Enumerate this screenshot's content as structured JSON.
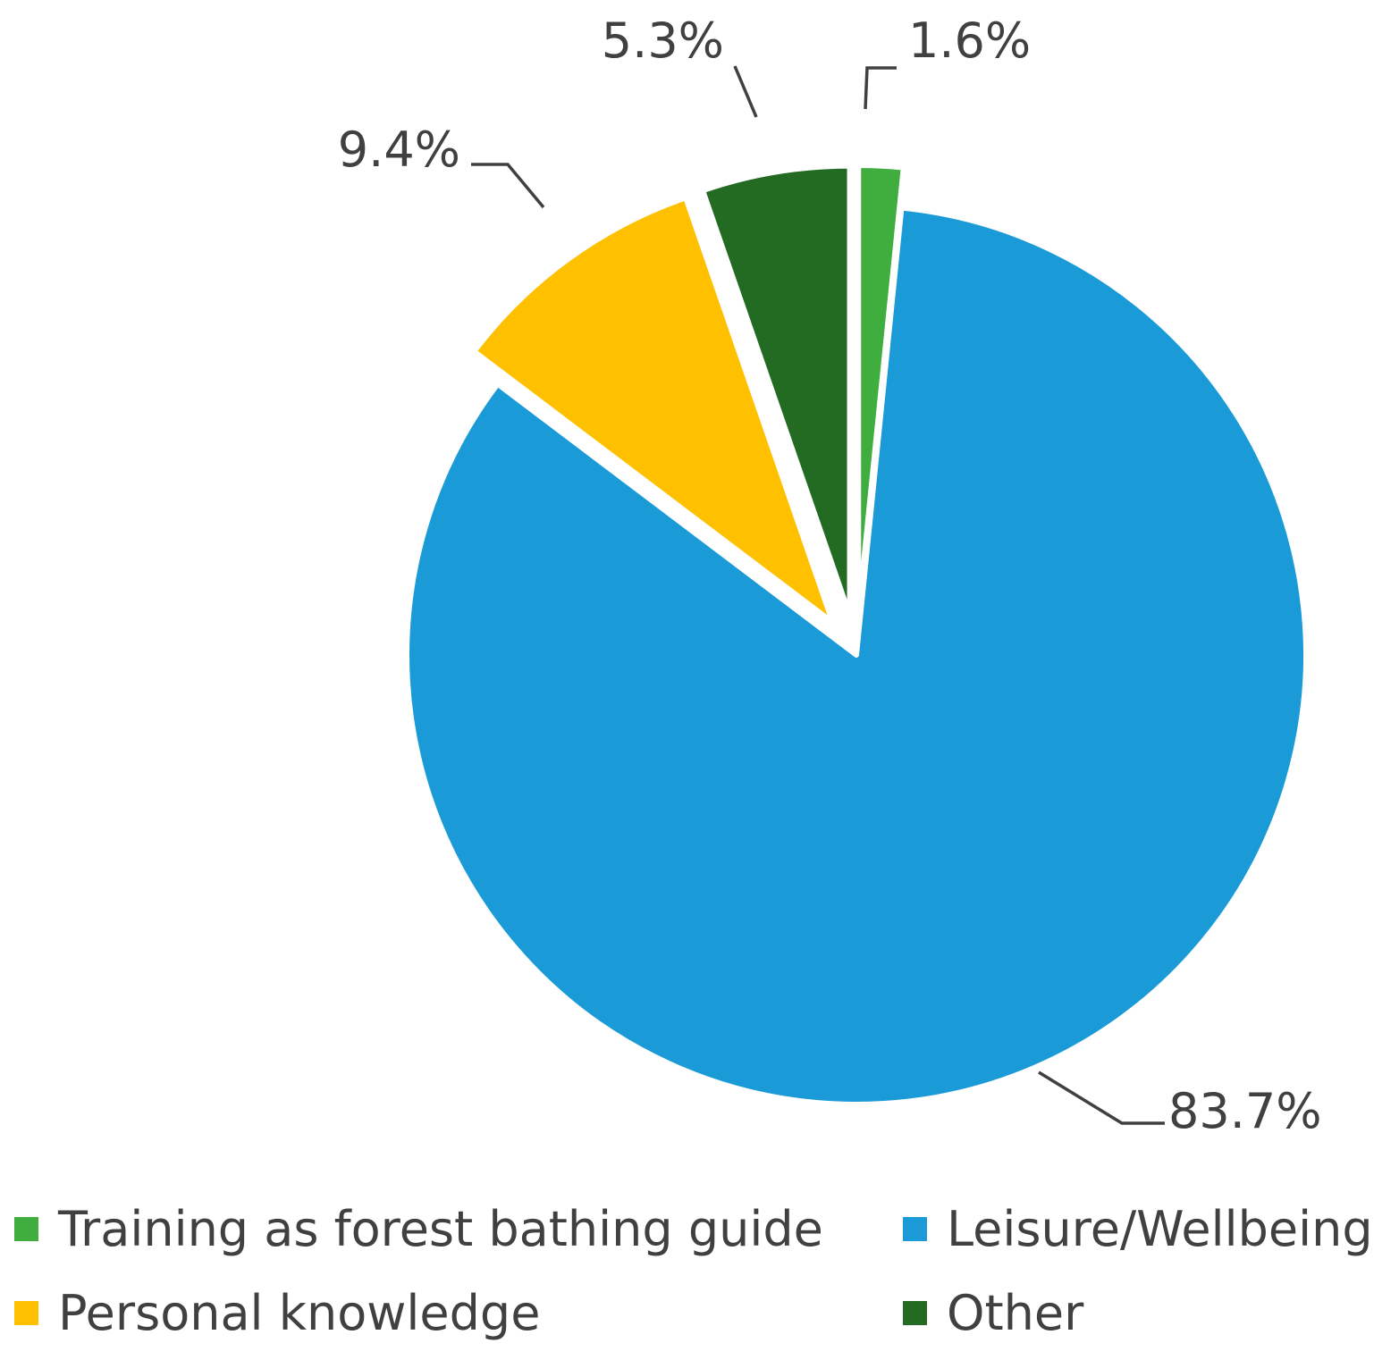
{
  "chart_data": {
    "type": "pie",
    "title": "",
    "start_angle_deg": 0,
    "direction": "clockwise",
    "slices": [
      {
        "label": "Training as forest bathing guide",
        "value": 1.6,
        "value_label": "1.6%",
        "color": "#3fae3f",
        "exploded": true
      },
      {
        "label": "Leisure/Wellbeing",
        "value": 83.7,
        "value_label": "83.7%",
        "color": "#1a9bd7",
        "exploded": false
      },
      {
        "label": "Personal knowledge",
        "value": 9.4,
        "value_label": "9.4%",
        "color": "#ffc000",
        "exploded": true
      },
      {
        "label": "Other",
        "value": 5.3,
        "value_label": "5.3%",
        "color": "#236b22",
        "exploded": true
      }
    ],
    "legend": {
      "position": "bottom",
      "items": [
        {
          "label": "Training as forest bathing guide",
          "color": "#3fae3f"
        },
        {
          "label": "Leisure/Wellbeing",
          "color": "#1a9bd7"
        },
        {
          "label": "Personal knowledge",
          "color": "#ffc000"
        },
        {
          "label": "Other",
          "color": "#236b22"
        }
      ]
    }
  }
}
